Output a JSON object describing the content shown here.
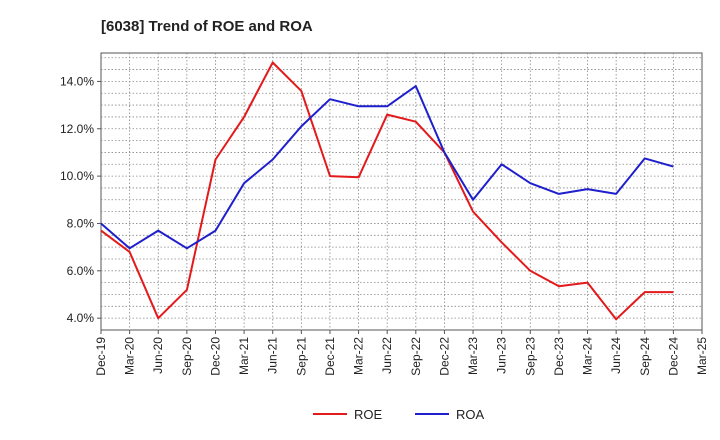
{
  "chart_data": {
    "type": "line",
    "title": "[6038]  Trend of ROE and ROA",
    "xlabel": "",
    "ylabel": "",
    "ylim": [
      3.5,
      15.2
    ],
    "yticks": [
      4.0,
      6.0,
      8.0,
      10.0,
      12.0,
      14.0
    ],
    "ytick_labels": [
      "4.0%",
      "6.0%",
      "8.0%",
      "10.0%",
      "12.0%",
      "14.0%"
    ],
    "x": [
      "Dec-19",
      "Mar-20",
      "Jun-20",
      "Sep-20",
      "Dec-20",
      "Mar-21",
      "Jun-21",
      "Sep-21",
      "Dec-21",
      "Mar-22",
      "Jun-22",
      "Sep-22",
      "Dec-22",
      "Mar-23",
      "Jun-23",
      "Sep-23",
      "Dec-23",
      "Mar-24",
      "Jun-24",
      "Sep-24",
      "Dec-24",
      "Mar-25"
    ],
    "grid": true,
    "legend": "bottom-center",
    "series": [
      {
        "name": "ROE",
        "color": "#e31a1c",
        "values": [
          7.7,
          6.8,
          4.0,
          5.2,
          10.7,
          12.5,
          14.8,
          13.6,
          10.0,
          9.95,
          12.6,
          12.3,
          11.0,
          8.5,
          7.2,
          6.0,
          5.35,
          5.5,
          3.95,
          5.1,
          5.1,
          null
        ]
      },
      {
        "name": "ROA",
        "color": "#1f1fcc",
        "values": [
          8.0,
          6.95,
          7.7,
          6.95,
          7.7,
          9.7,
          10.7,
          12.1,
          13.25,
          12.95,
          12.95,
          13.8,
          11.0,
          9.0,
          10.5,
          9.7,
          9.25,
          9.45,
          9.25,
          10.75,
          10.4,
          null
        ]
      }
    ]
  }
}
